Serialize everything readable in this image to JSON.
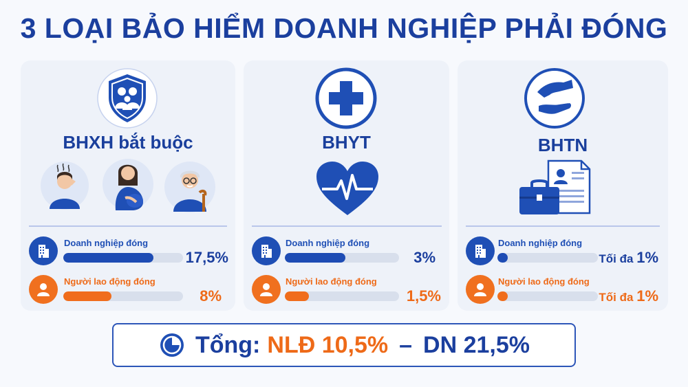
{
  "title": "3 LOẠI BẢO HIỂM DOANH NGHIỆP PHẢI ĐÓNG",
  "colors": {
    "primary": "#1f4fb5",
    "accent": "#f0701f",
    "card": "#eef2f9"
  },
  "cards": [
    {
      "title": "BHXH bắt buộc",
      "icons": [
        "shield-family-icon",
        "sick-person-icon",
        "pregnant-woman-icon",
        "elderly-man-icon"
      ],
      "rows": [
        {
          "label": "Doanh nghiệp đóng",
          "value": "17,5%",
          "fill_fraction": 0.75,
          "icon": "building-icon"
        },
        {
          "label": "Người lao động đóng",
          "value": "8%",
          "fill_fraction": 0.4,
          "icon": "person-icon"
        }
      ]
    },
    {
      "title": "BHYT",
      "icons": [
        "medical-cross-icon",
        "heart-pulse-icon"
      ],
      "rows": [
        {
          "label": "Doanh nghiệp đóng",
          "value": "3%",
          "fill_fraction": 0.53,
          "icon": "building-icon"
        },
        {
          "label": "Người lao động đóng",
          "value": "1,5%",
          "fill_fraction": 0.21,
          "icon": "person-icon"
        }
      ]
    },
    {
      "title": "BHTN",
      "icons": [
        "helping-hands-icon",
        "briefcase-document-icon"
      ],
      "rows": [
        {
          "label": "Doanh nghiệp đóng",
          "prefix": "Tối đa",
          "value": "1%",
          "fill_fraction": 0.1,
          "icon": "building-icon"
        },
        {
          "label": "Người lao động đóng",
          "prefix": "Tối đa",
          "value": "1%",
          "fill_fraction": 0.1,
          "icon": "person-icon"
        }
      ]
    }
  ],
  "total": {
    "label": "Tổng:",
    "nld": "NLĐ 10,5%",
    "separator": "–",
    "dn": "DN 21,5%",
    "icon": "pie-chart-icon"
  }
}
